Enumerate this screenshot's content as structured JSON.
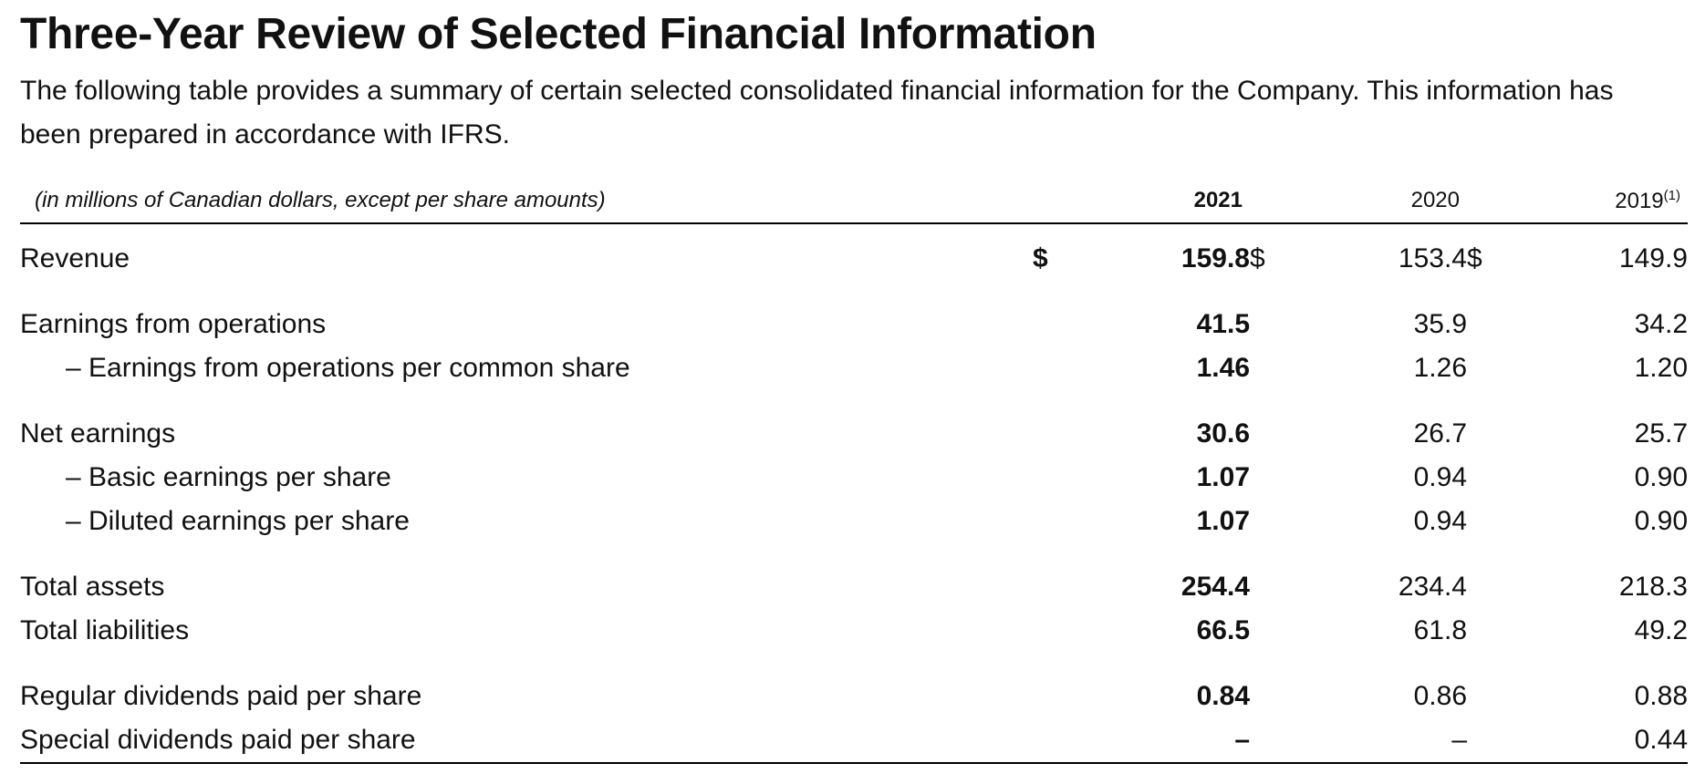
{
  "title": "Three-Year Review of Selected Financial Information",
  "intro": "The following table provides a summary of certain selected consolidated financial information for the Company. This information has been prepared in accordance with IFRS.",
  "table": {
    "caption": "(in millions of Canadian dollars, except per share amounts)",
    "years": [
      "2021",
      "2020",
      "2019"
    ],
    "year_2019_footnote": "(1)",
    "currency_symbol": "$",
    "rows": [
      {
        "label": "Revenue",
        "values": [
          "159.8",
          "153.4",
          "149.9"
        ]
      },
      {
        "label": "Earnings from operations",
        "values": [
          "41.5",
          "35.9",
          "34.2"
        ]
      },
      {
        "label": "– Earnings from operations per common share",
        "values": [
          "1.46",
          "1.26",
          "1.20"
        ]
      },
      {
        "label": "Net earnings",
        "values": [
          "30.6",
          "26.7",
          "25.7"
        ]
      },
      {
        "label": "– Basic earnings per share",
        "values": [
          "1.07",
          "0.94",
          "0.90"
        ]
      },
      {
        "label": "– Diluted earnings per share",
        "values": [
          "1.07",
          "0.94",
          "0.90"
        ]
      },
      {
        "label": "Total assets",
        "values": [
          "254.4",
          "234.4",
          "218.3"
        ]
      },
      {
        "label": "Total liabilities",
        "values": [
          "66.5",
          "61.8",
          "49.2"
        ]
      },
      {
        "label": "Regular dividends paid per share",
        "values": [
          "0.84",
          "0.86",
          "0.88"
        ]
      },
      {
        "label": "Special dividends paid per share",
        "values": [
          "–",
          "–",
          "0.44"
        ]
      }
    ]
  }
}
